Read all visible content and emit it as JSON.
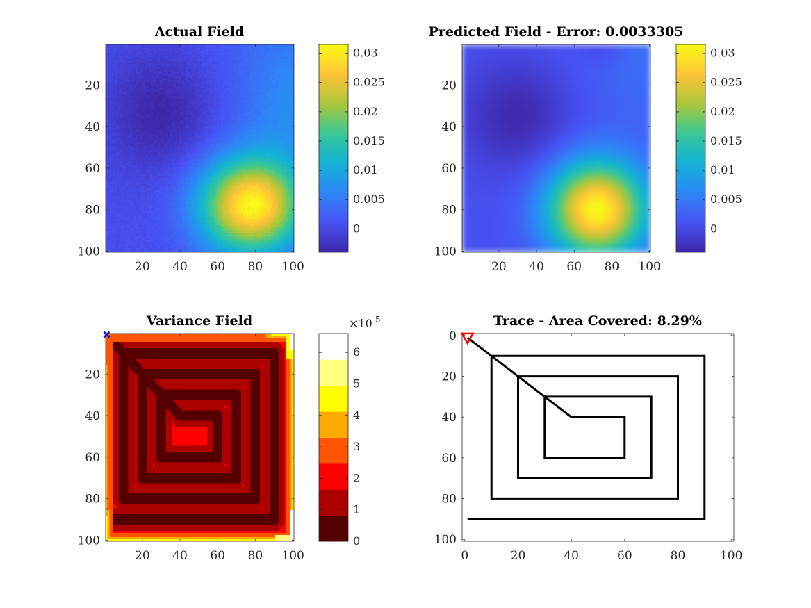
{
  "figure": {
    "background": "#ffffff"
  },
  "chart_data": [
    {
      "id": "actual",
      "type": "heatmap",
      "title": "Actual Field",
      "xlabel": "",
      "ylabel": "",
      "xlim": [
        0.5,
        100.5
      ],
      "ylim": [
        0.5,
        100.5
      ],
      "y_reversed": true,
      "xticks": [
        20,
        40,
        60,
        80,
        100
      ],
      "yticks": [
        20,
        40,
        60,
        80,
        100
      ],
      "colormap": "parula",
      "clim": [
        -0.004,
        0.0315
      ],
      "colorbar_ticks": [
        {
          "value": 0,
          "label": "0"
        },
        {
          "value": 0.005,
          "label": "0.005"
        },
        {
          "value": 0.01,
          "label": "0.01"
        },
        {
          "value": 0.015,
          "label": "0.015"
        },
        {
          "value": 0.02,
          "label": "0.02"
        },
        {
          "value": 0.025,
          "label": "0.025"
        },
        {
          "value": 0.03,
          "label": "0.03"
        }
      ],
      "field_description": "low values (~-0.003) around row 30-40, col 30; peak (~0.031) near row 80, col 80",
      "field": {
        "base": 0.0005,
        "bumps": [
          {
            "x": 78,
            "y": 78,
            "sx": 19,
            "sy": 16,
            "amp": 0.0305
          },
          {
            "x": 30,
            "y": 33,
            "sx": 20,
            "sy": 20,
            "amp": -0.0045
          },
          {
            "x": 105,
            "y": 5,
            "sx": 30,
            "sy": 30,
            "amp": 0.0035
          },
          {
            "x": 100,
            "y": 35,
            "sx": 18,
            "sy": 20,
            "amp": 0.004
          }
        ],
        "noise": 0.0009
      }
    },
    {
      "id": "predicted",
      "type": "heatmap",
      "title": "Predicted Field - Error: 0.0033305",
      "xlabel": "",
      "ylabel": "",
      "xlim": [
        0.5,
        100.5
      ],
      "ylim": [
        0.5,
        100.5
      ],
      "y_reversed": true,
      "xticks": [
        20,
        40,
        60,
        80,
        100
      ],
      "yticks": [
        20,
        40,
        60,
        80,
        100
      ],
      "colormap": "parula",
      "clim": [
        -0.004,
        0.0315
      ],
      "colorbar_ticks": [
        {
          "value": 0,
          "label": "0"
        },
        {
          "value": 0.005,
          "label": "0.005"
        },
        {
          "value": 0.01,
          "label": "0.01"
        },
        {
          "value": 0.015,
          "label": "0.015"
        },
        {
          "value": 0.02,
          "label": "0.02"
        },
        {
          "value": 0.025,
          "label": "0.025"
        },
        {
          "value": 0.03,
          "label": "0.03"
        }
      ],
      "field_description": "smooth reconstruction; peak (~0.031) near row 80, col 72; low region near row 35, col 28",
      "field": {
        "base": 0.0008,
        "bumps": [
          {
            "x": 72,
            "y": 80,
            "sx": 18,
            "sy": 16,
            "amp": 0.0305
          },
          {
            "x": 30,
            "y": 35,
            "sx": 20,
            "sy": 18,
            "amp": -0.0045
          },
          {
            "x": 75,
            "y": 2,
            "sx": 8,
            "sy": 6,
            "amp": -0.002
          },
          {
            "x": 105,
            "y": 5,
            "sx": 30,
            "sy": 30,
            "amp": 0.003
          }
        ],
        "noise": 0
      }
    },
    {
      "id": "variance",
      "type": "heatmap",
      "title": "Variance Field",
      "xlabel": "",
      "ylabel": "",
      "xlim": [
        0.5,
        100.5
      ],
      "ylim": [
        0.5,
        100.5
      ],
      "y_reversed": true,
      "xticks": [
        20,
        40,
        60,
        80,
        100
      ],
      "yticks": [
        20,
        40,
        60,
        80,
        100
      ],
      "colormap": "hot",
      "colormap_levels": 8,
      "clim": [
        0,
        6.6
      ],
      "colorbar_exponent_label": "×10",
      "colorbar_exponent": "-5",
      "colorbar_ticks": [
        {
          "value": 0,
          "label": "0"
        },
        {
          "value": 1,
          "label": "1"
        },
        {
          "value": 2,
          "label": "2"
        },
        {
          "value": 3,
          "label": "3"
        },
        {
          "value": 4,
          "label": "4"
        },
        {
          "value": 5,
          "label": "5"
        },
        {
          "value": 6,
          "label": "6"
        }
      ],
      "field_description": "near-zero variance along the sampled spiral path, ~1-2e-5 between loops, rising to ~6e-5 at the outer edges",
      "marker": {
        "x": 1,
        "y": 1,
        "symbol": "x",
        "color": "#0000ff"
      }
    },
    {
      "id": "trace",
      "type": "line",
      "title": "Trace - Area Covered: 8.29%",
      "xlabel": "",
      "ylabel": "",
      "xlim": [
        -1,
        101
      ],
      "ylim": [
        -1,
        101
      ],
      "y_reversed": true,
      "xticks": [
        0,
        20,
        40,
        60,
        80,
        100
      ],
      "yticks": [
        0,
        20,
        40,
        60,
        80,
        100
      ],
      "series": [
        {
          "color": "#000000",
          "x": [
            1,
            10,
            20,
            30,
            40,
            60,
            60,
            30,
            30,
            70,
            70,
            20,
            20,
            80,
            80,
            10,
            10,
            90,
            90,
            1
          ],
          "y": [
            1,
            10,
            20,
            30,
            40,
            40,
            60,
            60,
            30,
            30,
            70,
            70,
            20,
            20,
            80,
            80,
            10,
            10,
            90,
            90
          ]
        }
      ],
      "start_marker": {
        "x": 1,
        "y": 1,
        "symbol": "triangle-down",
        "color": "#ff0000"
      }
    }
  ]
}
